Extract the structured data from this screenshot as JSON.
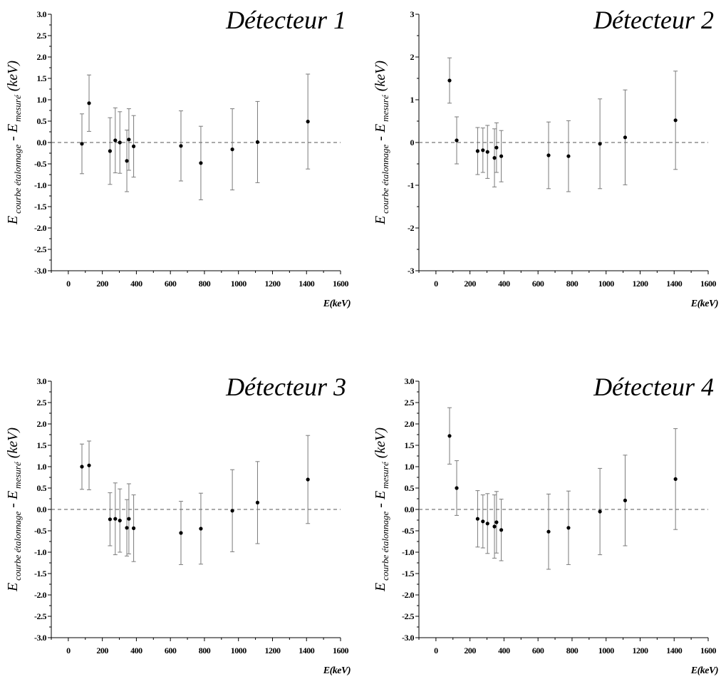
{
  "chart_data": [
    {
      "type": "scatter",
      "title": "Détecteur 1",
      "xlabel": "E(keV)",
      "ylabel": {
        "main1": "E",
        "sub1": "courbe étalonnage",
        "dash": " - ",
        "main2": "E",
        "sub2": "mesuré",
        "unit": " (keV)"
      },
      "xlim": [
        -100,
        1600
      ],
      "ylim": [
        -3.0,
        3.0
      ],
      "xticks": [
        0,
        200,
        400,
        600,
        800,
        1000,
        1200,
        1400,
        1600
      ],
      "yticks": [
        "-3.0",
        "-2.5",
        "-2.0",
        "-1.5",
        "-1.0",
        "-0.5",
        "0.0",
        "0.5",
        "1.0",
        "1.5",
        "2.0",
        "2.5",
        "3.0"
      ],
      "reference_line": 0,
      "points": [
        {
          "x": 80,
          "y": -0.03,
          "err": 0.7
        },
        {
          "x": 122,
          "y": 0.92,
          "err": 0.66
        },
        {
          "x": 245,
          "y": -0.2,
          "err": 0.78
        },
        {
          "x": 276,
          "y": 0.05,
          "err": 0.76
        },
        {
          "x": 303,
          "y": 0.0,
          "err": 0.72
        },
        {
          "x": 344,
          "y": -0.43,
          "err": 0.72
        },
        {
          "x": 356,
          "y": 0.07,
          "err": 0.72
        },
        {
          "x": 384,
          "y": -0.09,
          "err": 0.72
        },
        {
          "x": 662,
          "y": -0.08,
          "err": 0.82
        },
        {
          "x": 779,
          "y": -0.48,
          "err": 0.86
        },
        {
          "x": 964,
          "y": -0.16,
          "err": 0.95
        },
        {
          "x": 1112,
          "y": 0.01,
          "err": 0.95
        },
        {
          "x": 1408,
          "y": 0.49,
          "err": 1.11
        }
      ]
    },
    {
      "type": "scatter",
      "title": "Détecteur 2",
      "xlabel": "E(keV)",
      "ylabel": {
        "main1": "E",
        "sub1": "courbe étalonnage",
        "dash": " - ",
        "main2": "E",
        "sub2": "mesuré",
        "unit": " (keV)"
      },
      "xlim": [
        -100,
        1600
      ],
      "ylim": [
        -3,
        3
      ],
      "xticks": [
        0,
        200,
        400,
        600,
        800,
        1000,
        1200,
        1400,
        1600
      ],
      "yticks": [
        "-3",
        "-2",
        "-1",
        "0",
        "1",
        "2",
        "3"
      ],
      "reference_line": 0,
      "points": [
        {
          "x": 80,
          "y": 1.45,
          "err": 0.53
        },
        {
          "x": 122,
          "y": 0.05,
          "err": 0.55
        },
        {
          "x": 245,
          "y": -0.2,
          "err": 0.55
        },
        {
          "x": 276,
          "y": -0.18,
          "err": 0.52
        },
        {
          "x": 303,
          "y": -0.22,
          "err": 0.62
        },
        {
          "x": 344,
          "y": -0.36,
          "err": 0.68
        },
        {
          "x": 356,
          "y": -0.12,
          "err": 0.58
        },
        {
          "x": 384,
          "y": -0.32,
          "err": 0.6
        },
        {
          "x": 662,
          "y": -0.3,
          "err": 0.78
        },
        {
          "x": 779,
          "y": -0.32,
          "err": 0.83
        },
        {
          "x": 964,
          "y": -0.03,
          "err": 1.05
        },
        {
          "x": 1112,
          "y": 0.12,
          "err": 1.11
        },
        {
          "x": 1408,
          "y": 0.52,
          "err": 1.15
        }
      ]
    },
    {
      "type": "scatter",
      "title": "Détecteur 3",
      "xlabel": "E(keV)",
      "ylabel": {
        "main1": "E",
        "sub1": "courbe étalonnage",
        "dash": " - ",
        "main2": "E",
        "sub2": "mesuré",
        "unit": " (keV)"
      },
      "xlim": [
        -100,
        1600
      ],
      "ylim": [
        -3.0,
        3.0
      ],
      "xticks": [
        0,
        200,
        400,
        600,
        800,
        1000,
        1200,
        1400,
        1600
      ],
      "yticks": [
        "-3.0",
        "-2.5",
        "-2.0",
        "-1.5",
        "-1.0",
        "-0.5",
        "0.0",
        "0.5",
        "1.0",
        "1.5",
        "2.0",
        "2.5",
        "3.0"
      ],
      "reference_line": 0,
      "points": [
        {
          "x": 80,
          "y": 1.0,
          "err": 0.53
        },
        {
          "x": 122,
          "y": 1.03,
          "err": 0.57
        },
        {
          "x": 245,
          "y": -0.23,
          "err": 0.62
        },
        {
          "x": 276,
          "y": -0.22,
          "err": 0.84
        },
        {
          "x": 303,
          "y": -0.26,
          "err": 0.74
        },
        {
          "x": 344,
          "y": -0.43,
          "err": 0.66
        },
        {
          "x": 356,
          "y": -0.22,
          "err": 0.82
        },
        {
          "x": 384,
          "y": -0.44,
          "err": 0.78
        },
        {
          "x": 662,
          "y": -0.55,
          "err": 0.74
        },
        {
          "x": 779,
          "y": -0.45,
          "err": 0.83
        },
        {
          "x": 964,
          "y": -0.03,
          "err": 0.96
        },
        {
          "x": 1112,
          "y": 0.16,
          "err": 0.96
        },
        {
          "x": 1408,
          "y": 0.7,
          "err": 1.03
        }
      ]
    },
    {
      "type": "scatter",
      "title": "Détecteur 4",
      "xlabel": "E(keV)",
      "ylabel": {
        "main1": "E",
        "sub1": "courbe étalonnage",
        "dash": " - ",
        "main2": "E",
        "sub2": "mesuré",
        "unit": " (keV)"
      },
      "xlim": [
        -100,
        1600
      ],
      "ylim": [
        -3.0,
        3.0
      ],
      "xticks": [
        0,
        200,
        400,
        600,
        800,
        1000,
        1200,
        1400,
        1600
      ],
      "yticks": [
        "-3.0",
        "-2.5",
        "-2.0",
        "-1.5",
        "-1.0",
        "-0.5",
        "0.0",
        "0.5",
        "1.0",
        "1.5",
        "2.0",
        "2.5",
        "3.0"
      ],
      "reference_line": 0,
      "points": [
        {
          "x": 80,
          "y": 1.72,
          "err": 0.66
        },
        {
          "x": 122,
          "y": 0.5,
          "err": 0.64
        },
        {
          "x": 245,
          "y": -0.22,
          "err": 0.66
        },
        {
          "x": 276,
          "y": -0.28,
          "err": 0.62
        },
        {
          "x": 303,
          "y": -0.33,
          "err": 0.7
        },
        {
          "x": 344,
          "y": -0.4,
          "err": 0.74
        },
        {
          "x": 356,
          "y": -0.3,
          "err": 0.72
        },
        {
          "x": 384,
          "y": -0.48,
          "err": 0.72
        },
        {
          "x": 662,
          "y": -0.52,
          "err": 0.88
        },
        {
          "x": 779,
          "y": -0.43,
          "err": 0.86
        },
        {
          "x": 964,
          "y": -0.05,
          "err": 1.01
        },
        {
          "x": 1112,
          "y": 0.21,
          "err": 1.06
        },
        {
          "x": 1408,
          "y": 0.71,
          "err": 1.18
        }
      ]
    }
  ]
}
